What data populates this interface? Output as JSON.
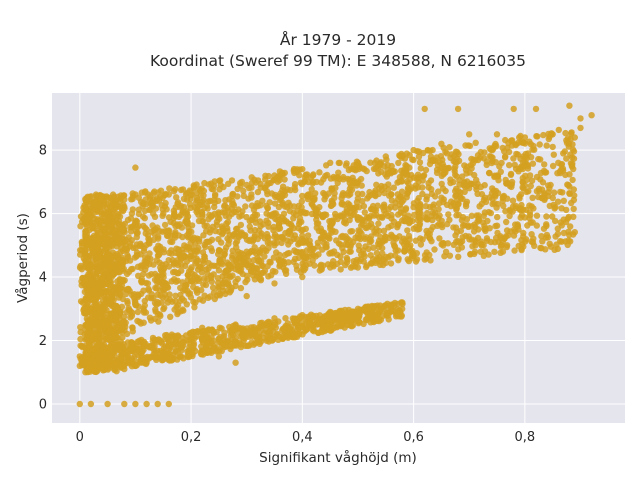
{
  "chart_data": {
    "type": "scatter",
    "title_line1": "År 1979 - 2019",
    "title_line2": "Koordinat (Sweref 99 TM): E 348588, N 6216035",
    "xlabel": "Signifikant våghöjd (m)",
    "ylabel": "Vågperiod (s)",
    "xlim": [
      -0.05,
      0.98
    ],
    "ylim": [
      -0.6,
      9.8
    ],
    "x_ticks": [
      0,
      0.2,
      0.4,
      0.6,
      0.8
    ],
    "x_tick_labels": [
      "0",
      "0,2",
      "0,4",
      "0,6",
      "0,8"
    ],
    "y_ticks": [
      0,
      2,
      4,
      6,
      8
    ],
    "y_tick_labels": [
      "0",
      "2",
      "4",
      "6",
      "8"
    ],
    "grid": true,
    "marker_color": "#d4a020",
    "plot_bg": "#e5e5ee",
    "series": [
      {
        "points": [
          [
            0.0,
            0.0
          ],
          [
            0.02,
            0.0
          ],
          [
            0.05,
            0.0
          ],
          [
            0.08,
            0.0
          ],
          [
            0.1,
            0.0
          ],
          [
            0.12,
            0.0
          ],
          [
            0.14,
            0.0
          ],
          [
            0.16,
            0.0
          ],
          [
            0.0,
            1.5
          ],
          [
            0.0,
            1.2
          ],
          [
            0.01,
            1.3
          ],
          [
            0.02,
            2.0
          ],
          [
            0.02,
            3.0
          ],
          [
            0.03,
            4.5
          ],
          [
            0.04,
            5.5
          ],
          [
            0.05,
            6.5
          ],
          [
            0.05,
            3.8
          ],
          [
            0.06,
            1.2
          ],
          [
            0.08,
            1.1
          ],
          [
            0.1,
            1.2
          ],
          [
            0.12,
            1.3
          ],
          [
            0.15,
            1.4
          ],
          [
            0.18,
            1.5
          ],
          [
            0.2,
            1.6
          ],
          [
            0.25,
            1.5
          ],
          [
            0.28,
            1.3
          ],
          [
            0.08,
            2.5
          ],
          [
            0.1,
            3.2
          ],
          [
            0.12,
            5.5
          ],
          [
            0.15,
            6.0
          ],
          [
            0.1,
            6.6
          ],
          [
            0.13,
            6.3
          ],
          [
            0.18,
            6.2
          ],
          [
            0.2,
            6.7
          ],
          [
            0.1,
            7.45
          ],
          [
            0.16,
            6.6
          ],
          [
            0.22,
            2.4
          ],
          [
            0.28,
            2.5
          ],
          [
            0.35,
            2.7
          ],
          [
            0.4,
            2.8
          ],
          [
            0.45,
            2.9
          ],
          [
            0.5,
            3.0
          ],
          [
            0.54,
            3.1
          ],
          [
            0.58,
            3.15
          ],
          [
            0.3,
            6.9
          ],
          [
            0.35,
            7.2
          ],
          [
            0.4,
            7.4
          ],
          [
            0.45,
            7.6
          ],
          [
            0.5,
            7.6
          ],
          [
            0.55,
            7.8
          ],
          [
            0.6,
            8.0
          ],
          [
            0.65,
            8.2
          ],
          [
            0.3,
            4.8
          ],
          [
            0.35,
            5.0
          ],
          [
            0.4,
            5.3
          ],
          [
            0.45,
            5.6
          ],
          [
            0.5,
            5.8
          ],
          [
            0.55,
            6.0
          ],
          [
            0.6,
            6.2
          ],
          [
            0.65,
            6.5
          ],
          [
            0.3,
            3.4
          ],
          [
            0.35,
            3.8
          ],
          [
            0.4,
            4.0
          ],
          [
            0.45,
            4.3
          ],
          [
            0.48,
            4.6
          ],
          [
            0.7,
            6.8
          ],
          [
            0.75,
            7.2
          ],
          [
            0.8,
            7.6
          ],
          [
            0.85,
            8.1
          ],
          [
            0.9,
            8.7
          ],
          [
            0.7,
            8.5
          ],
          [
            0.75,
            8.5
          ],
          [
            0.8,
            8.4
          ],
          [
            0.85,
            8.5
          ],
          [
            0.9,
            9.0
          ],
          [
            0.92,
            9.1
          ],
          [
            0.62,
            9.3
          ],
          [
            0.68,
            9.3
          ],
          [
            0.78,
            9.3
          ],
          [
            0.82,
            9.3
          ],
          [
            0.88,
            9.4
          ],
          [
            0.6,
            4.7
          ]
        ]
      }
    ]
  }
}
